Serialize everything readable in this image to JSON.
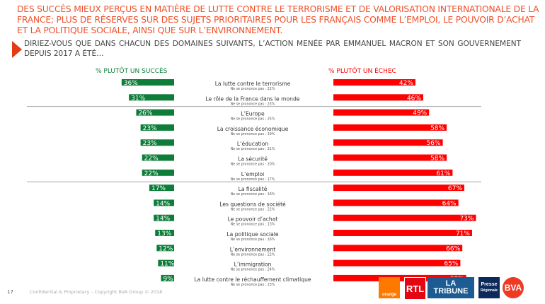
{
  "headline": "DES SUCCÈS MIEUX PERÇUS EN MATIÈRE DE LUTTE CONTRE LE TERRORISME ET DE VALORISATION INTERNATIONALE DE LA FRANCE; PLUS DE RÉSERVES SUR DES SUJETS PRIORITAIRES POUR LES FRANÇAIS COMME L’EMPLOI, LE POUVOIR D’ACHAT ET LA POLITIQUE SOCIALE, AINSI QUE SUR L’ENVIRONNEMENT.",
  "question": "DIRIEZ-VOUS QUE DANS CHACUN DES DOMAINES SUIVANTS, L’ACTION MENÉE PAR EMMANUEL MACRON ET SON GOUVERNEMENT DEPUIS 2017 A ÉTÉ…",
  "footer": {
    "page": "17",
    "copyright": "Confidential & Proprietary – Copyright BVA Group ©  2018"
  },
  "logos": [
    "orange",
    "RTL",
    "LA TRIBUNE",
    "Presse Régionale",
    "BVA"
  ],
  "colors": {
    "success": "#0e7d3a",
    "failure": "#ff0000",
    "headline": "#f0502a"
  },
  "chart_data": {
    "type": "bar",
    "orientation": "horizontal-diverging",
    "series": [
      {
        "name": "% PLUTÔT UN SUCCÈS",
        "color": "#0e7d3a",
        "values": [
          36,
          31,
          26,
          23,
          23,
          22,
          22,
          17,
          14,
          14,
          13,
          12,
          11,
          9
        ]
      },
      {
        "name": "% PLUTÔT UN ÉCHEC",
        "color": "#ff0000",
        "values": [
          42,
          46,
          49,
          58,
          56,
          58,
          61,
          67,
          64,
          73,
          71,
          66,
          65,
          68
        ]
      }
    ],
    "categories": [
      "La lutte contre le terrorisme",
      "Le rôle de la France dans le monde",
      "L’Europe",
      "La croissance économique",
      "L’éducation",
      "La sécurité",
      "L’emploi",
      "La fiscalité",
      "Les questions de société",
      "Le pouvoir d’achat",
      "La politique sociale",
      "L’environnement",
      "L’immigration",
      "La lutte contre le réchauffement climatique"
    ],
    "no_opinion": [
      "Ne se prononce pas : 22%",
      "Ne se prononce pas : 23%",
      "Ne se prononce pas : 25%",
      "Ne se prononce pas : 19%",
      "Ne se prononce pas : 21%",
      "Ne se prononce pas : 20%",
      "Ne se prononce pas : 17%",
      "Ne se prononce pas : 16%",
      "Ne se prononce pas : 22%",
      "Ne se prononce pas : 13%",
      "Ne se prononce pas : 16%",
      "Ne se prononce pas : 22%",
      "Ne se prononce pas : 24%",
      "Ne se prononce pas : 23%"
    ],
    "group_separators_after": [
      2,
      7
    ],
    "value_suffix": "%"
  }
}
